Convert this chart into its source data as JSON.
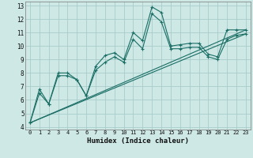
{
  "xlabel": "Humidex (Indice chaleur)",
  "xlim": [
    -0.5,
    23.5
  ],
  "ylim": [
    3.8,
    13.3
  ],
  "xticks": [
    0,
    1,
    2,
    3,
    4,
    5,
    6,
    7,
    8,
    9,
    10,
    11,
    12,
    13,
    14,
    15,
    16,
    17,
    18,
    19,
    20,
    21,
    22,
    23
  ],
  "yticks": [
    4,
    5,
    6,
    7,
    8,
    9,
    10,
    11,
    12,
    13
  ],
  "bg_color": "#cde8e5",
  "grid_color": "#a8ccca",
  "line_color": "#1a6e65",
  "line1_x": [
    0,
    1,
    2,
    3,
    4,
    5,
    6,
    7,
    8,
    9,
    10,
    11,
    12,
    13,
    14,
    15,
    16,
    17,
    18,
    19,
    20,
    21,
    22,
    23
  ],
  "line1_y": [
    4.3,
    6.8,
    5.7,
    8.0,
    8.0,
    7.5,
    6.3,
    8.5,
    9.3,
    9.5,
    9.0,
    11.0,
    10.4,
    12.9,
    12.5,
    10.0,
    10.1,
    10.2,
    10.2,
    9.4,
    9.2,
    11.2,
    11.2,
    11.2
  ],
  "line2_x": [
    0,
    1,
    2,
    3,
    4,
    5,
    6,
    7,
    8,
    9,
    10,
    11,
    12,
    13,
    14,
    15,
    16,
    17,
    18,
    19,
    20,
    21,
    22,
    23
  ],
  "line2_y": [
    4.3,
    6.5,
    5.7,
    7.8,
    7.8,
    7.5,
    6.3,
    8.2,
    8.8,
    9.2,
    8.8,
    10.5,
    9.8,
    12.4,
    11.8,
    9.8,
    9.8,
    9.9,
    9.9,
    9.2,
    9.0,
    10.5,
    10.8,
    10.9
  ],
  "line3_x": [
    0,
    23
  ],
  "line3_y": [
    4.3,
    11.2
  ],
  "line4_x": [
    0,
    23
  ],
  "line4_y": [
    4.3,
    10.9
  ]
}
